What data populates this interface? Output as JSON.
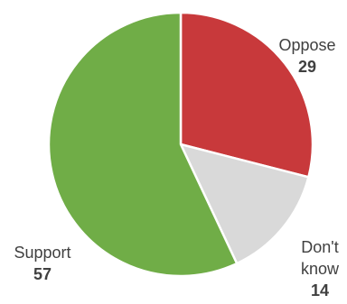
{
  "chart_data": {
    "type": "pie",
    "slices": [
      {
        "label": "Oppose",
        "label_lines": [
          "Oppose"
        ],
        "value": 29,
        "color": "#C8393B"
      },
      {
        "label": "Don't know",
        "label_lines": [
          "Don't",
          "know"
        ],
        "value": 14,
        "color": "#D9D9D9"
      },
      {
        "label": "Support",
        "label_lines": [
          "Support"
        ],
        "value": 57,
        "color": "#70AD47"
      }
    ],
    "start_angle_deg": 0,
    "direction": "clockwise",
    "legend": "none"
  }
}
